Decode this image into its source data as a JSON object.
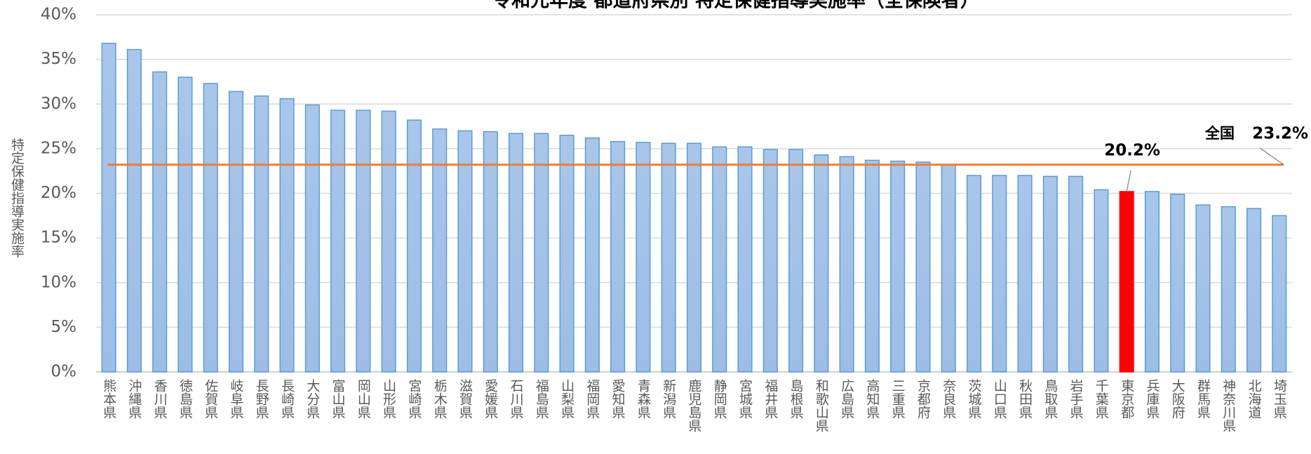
{
  "chart_data": {
    "type": "bar",
    "title": "令和元年度 都道府県別 特定保健指導実施率（全保険者）",
    "y_label": "特定保健指導実施率",
    "categories": [
      "熊本県",
      "沖縄県",
      "香川県",
      "徳島県",
      "佐賀県",
      "岐阜県",
      "長野県",
      "長崎県",
      "大分県",
      "富山県",
      "岡山県",
      "山形県",
      "宮崎県",
      "栃木県",
      "滋賀県",
      "愛媛県",
      "石川県",
      "福島県",
      "山梨県",
      "福岡県",
      "愛知県",
      "青森県",
      "新潟県",
      "鹿児島県",
      "静岡県",
      "宮城県",
      "福井県",
      "島根県",
      "和歌山県",
      "広島県",
      "高知県",
      "三重県",
      "京都府",
      "奈良県",
      "茨城県",
      "山口県",
      "秋田県",
      "鳥取県",
      "岩手県",
      "千葉県",
      "東京都",
      "兵庫県",
      "大阪府",
      "群馬県",
      "神奈川県",
      "北海道",
      "埼玉県"
    ],
    "values": [
      36.8,
      36.1,
      33.6,
      33.0,
      32.3,
      31.4,
      30.9,
      30.6,
      29.9,
      29.3,
      29.3,
      29.2,
      28.2,
      27.2,
      27.0,
      26.9,
      26.7,
      26.7,
      26.5,
      26.2,
      25.8,
      25.7,
      25.6,
      25.6,
      25.2,
      25.2,
      24.9,
      24.9,
      24.3,
      24.1,
      23.7,
      23.6,
      23.5,
      23.2,
      22.0,
      22.0,
      22.0,
      21.9,
      21.9,
      20.4,
      20.2,
      20.2,
      19.9,
      18.7,
      18.5,
      18.3,
      17.5
    ],
    "value_labels": [
      null,
      null,
      null,
      null,
      null,
      null,
      null,
      null,
      null,
      null,
      null,
      null,
      null,
      null,
      null,
      null,
      null,
      null,
      null,
      null,
      null,
      null,
      null,
      null,
      null,
      null,
      null,
      null,
      null,
      null,
      null,
      null,
      null,
      null,
      null,
      null,
      null,
      null,
      null,
      null,
      "20.2%",
      null,
      null,
      null,
      null,
      null,
      null
    ],
    "color": "#a9c6ea",
    "highlight": {
      "index": 40,
      "color": "#ff0000"
    },
    "national": {
      "label": "全国",
      "value": 23.2,
      "value_label": "23.2%",
      "color": "#ed7d31"
    },
    "ylim": [
      0,
      40
    ],
    "yticks": [
      {
        "value": 0,
        "label": "0%"
      },
      {
        "value": 5,
        "label": "5%"
      },
      {
        "value": 10,
        "label": "10%"
      },
      {
        "value": 15,
        "label": "15%"
      },
      {
        "value": 20,
        "label": "20%"
      },
      {
        "value": 25,
        "label": "25%"
      },
      {
        "value": 30,
        "label": "30%"
      },
      {
        "value": 35,
        "label": "35%"
      },
      {
        "value": 40,
        "label": "40%"
      }
    ],
    "grid": true
  }
}
